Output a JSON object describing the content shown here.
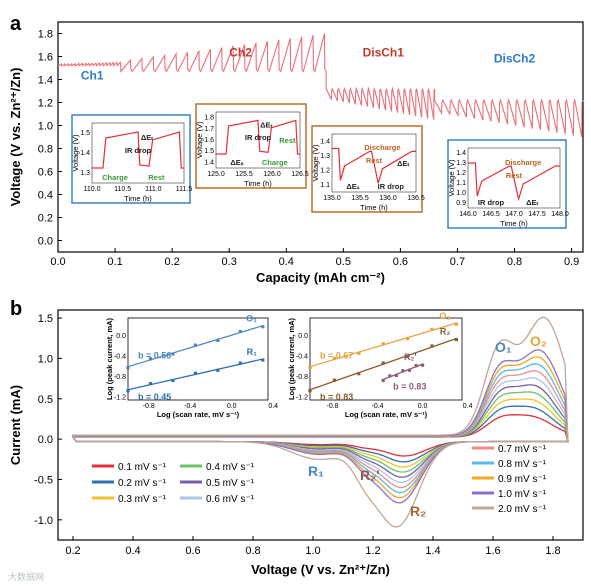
{
  "chart_data": [
    {
      "panel": "a",
      "type": "line",
      "xlabel": "Capacity (mAh cm⁻²)",
      "ylabel": "Voltage (V vs. Zn²⁺/Zn)",
      "xlim": [
        0,
        0.92
      ],
      "ylim": [
        -0.1,
        1.9
      ],
      "xticks": [
        "0.0",
        "0.1",
        "0.2",
        "0.3",
        "0.4",
        "0.5",
        "0.6",
        "0.7",
        "0.8",
        "0.9"
      ],
      "yticks": [
        "0.0",
        "0.2",
        "0.4",
        "0.6",
        "0.8",
        "1.0",
        "1.2",
        "1.4",
        "1.6",
        "1.8"
      ],
      "color": "#e8707a",
      "segments": [
        {
          "name": "Ch1",
          "label_color": "#2e7bbf",
          "x_range": [
            0.0,
            0.11
          ],
          "v_base": 1.52,
          "v_peak": 1.55
        },
        {
          "name": "Ch2",
          "label_color": "#c0392b",
          "x_range": [
            0.11,
            0.47
          ],
          "v_base": 1.47,
          "v_peak": 1.8
        },
        {
          "name": "DisCh1",
          "label_color": "#c0392b",
          "x_range": [
            0.47,
            0.66
          ],
          "v_base": 1.32,
          "v_dip": 1.05
        },
        {
          "name": "DisCh2",
          "label_color": "#2e7bbf",
          "x_range": [
            0.66,
            0.92
          ],
          "v_base": 1.22,
          "v_dip": 0.9
        }
      ],
      "annotations": [
        {
          "name": "Ch1",
          "x": 0.06,
          "y": 1.4
        },
        {
          "name": "Ch2",
          "x": 0.32,
          "y": 1.6
        },
        {
          "name": "DisCh1",
          "x": 0.57,
          "y": 1.6
        },
        {
          "name": "DisCh2",
          "x": 0.8,
          "y": 1.55
        }
      ],
      "insets": [
        {
          "name": "Ch1",
          "frame": "#2e7bbf",
          "xlabel": "Time (h)",
          "ylabel": "Voltage (V)",
          "xticks": [
            "110.0",
            "110.5",
            "111.0",
            "111.5"
          ],
          "yticks": [
            "1.3",
            "1.4",
            "1.5"
          ],
          "texts": [
            "ΔEₜ",
            "IR drop",
            "Charge",
            "Rest"
          ]
        },
        {
          "name": "Ch2",
          "frame": "#b5651d",
          "xlabel": "Time (h)",
          "ylabel": "Voltage (V)",
          "xticks": [
            "125.0",
            "125.5",
            "126.0",
            "126.5"
          ],
          "yticks": [
            "1.4",
            "1.5",
            "1.6",
            "1.7",
            "1.8"
          ],
          "texts": [
            "ΔEₜ",
            "IR drop",
            "ΔEₛ",
            "Charge",
            "Rest"
          ]
        },
        {
          "name": "DisCh1",
          "frame": "#b5651d",
          "xlabel": "Time (h)",
          "ylabel": "Voltage (V)",
          "xticks": [
            "135.0",
            "135.5",
            "136.0",
            "136.5"
          ],
          "yticks": [
            "1.1",
            "1.2",
            "1.3",
            "1.4"
          ],
          "texts": [
            "Discharge",
            "Rest",
            "ΔEₛ",
            "IR drop",
            "ΔEₜ"
          ]
        },
        {
          "name": "DisCh2",
          "frame": "#2e7bbf",
          "xlabel": "Time (h)",
          "ylabel": "Voltage (V)",
          "xticks": [
            "146.0",
            "146.5",
            "147.0",
            "147.5",
            "148.0"
          ],
          "yticks": [
            "0.9",
            "1.0",
            "1.1",
            "1.2",
            "1.3",
            "1.4"
          ],
          "texts": [
            "Discharge",
            "Rest",
            "IR drop",
            "ΔEₜ"
          ]
        }
      ]
    },
    {
      "panel": "b",
      "type": "line",
      "xlabel": "Voltage (V vs. Zn²⁺/Zn)",
      "ylabel": "Current (mA)",
      "xlim": [
        0.15,
        1.9
      ],
      "ylim": [
        -1.25,
        1.6
      ],
      "xticks": [
        "0.2",
        "0.4",
        "0.6",
        "0.8",
        "1.0",
        "1.2",
        "1.4",
        "1.6",
        "1.8"
      ],
      "yticks": [
        "-1.0",
        "-0.5",
        "0.0",
        "0.5",
        "1.0",
        "1.5"
      ],
      "series": [
        {
          "name": "0.1 mV s⁻¹",
          "color": "#e0303a",
          "scale": 0.17
        },
        {
          "name": "0.2 mV s⁻¹",
          "color": "#2f6fb2",
          "scale": 0.24
        },
        {
          "name": "0.3 mV s⁻¹",
          "color": "#f2c12e",
          "scale": 0.3
        },
        {
          "name": "0.4 mV s⁻¹",
          "color": "#6cc46a",
          "scale": 0.36
        },
        {
          "name": "0.5 mV s⁻¹",
          "color": "#7a5ea8",
          "scale": 0.42
        },
        {
          "name": "0.6 mV s⁻¹",
          "color": "#a8c8e8",
          "scale": 0.48
        },
        {
          "name": "0.7 mV s⁻¹",
          "color": "#f28c8c",
          "scale": 0.54
        },
        {
          "name": "0.8 mV s⁻¹",
          "color": "#5bb8e8",
          "scale": 0.6
        },
        {
          "name": "0.9 mV s⁻¹",
          "color": "#f5a623",
          "scale": 0.66
        },
        {
          "name": "1.0 mV s⁻¹",
          "color": "#8a6fd0",
          "scale": 0.72
        },
        {
          "name": "2.0 mV s⁻¹",
          "color": "#c0a898",
          "scale": 1.0
        }
      ],
      "peaks": [
        {
          "name": "O₁",
          "color": "#4a86c5"
        },
        {
          "name": "O₂",
          "color": "#e6a23c"
        },
        {
          "name": "R₁",
          "color": "#4a86c5"
        },
        {
          "name": "R₂'",
          "color": "#8a5c5c"
        },
        {
          "name": "R₂",
          "color": "#a0683a"
        }
      ],
      "insets": [
        {
          "xlabel": "Log (scan rate, mV s⁻¹)",
          "ylabel": "Log (peak current, mA)",
          "xticks": [
            "-0.8",
            "-0.4",
            "0.0",
            "0.4"
          ],
          "yticks": [
            "-1.2",
            "-0.8",
            "-0.4",
            "0.0"
          ],
          "fits": [
            {
              "label": "O₁",
              "b_text": "b = 0.56",
              "color": "#4a86c5",
              "x": [
                -1.0,
                0.3
              ],
              "y": [
                -0.6,
                0.2
              ]
            },
            {
              "label": "R₁",
              "b_text": "b = 0.45",
              "color": "#2f6fb2",
              "x": [
                -1.0,
                0.3
              ],
              "y": [
                -1.05,
                -0.45
              ]
            }
          ]
        },
        {
          "xlabel": "Log (scan rate, mV s⁻¹)",
          "ylabel": "Log (peak current, mA)",
          "xticks": [
            "-0.8",
            "-0.4",
            "0.0",
            "0.4"
          ],
          "yticks": [
            "-1.2",
            "-0.8",
            "-0.4",
            "0.0"
          ],
          "fits": [
            {
              "label": "O₂",
              "b_text": "b = 0.67",
              "color": "#e6a23c",
              "x": [
                -1.0,
                0.3
              ],
              "y": [
                -0.6,
                0.25
              ]
            },
            {
              "label": "R₂",
              "b_text": "b = 0.83",
              "color": "#8b5a2b",
              "x": [
                -1.0,
                0.3
              ],
              "y": [
                -1.05,
                -0.05
              ]
            },
            {
              "label": "R₂'",
              "b_text": "b = 0.83",
              "color": "#8a5c7a",
              "x": [
                -0.35,
                0.0
              ],
              "y": [
                -0.85,
                -0.55
              ]
            }
          ]
        }
      ]
    }
  ],
  "watermark": "大数据网"
}
